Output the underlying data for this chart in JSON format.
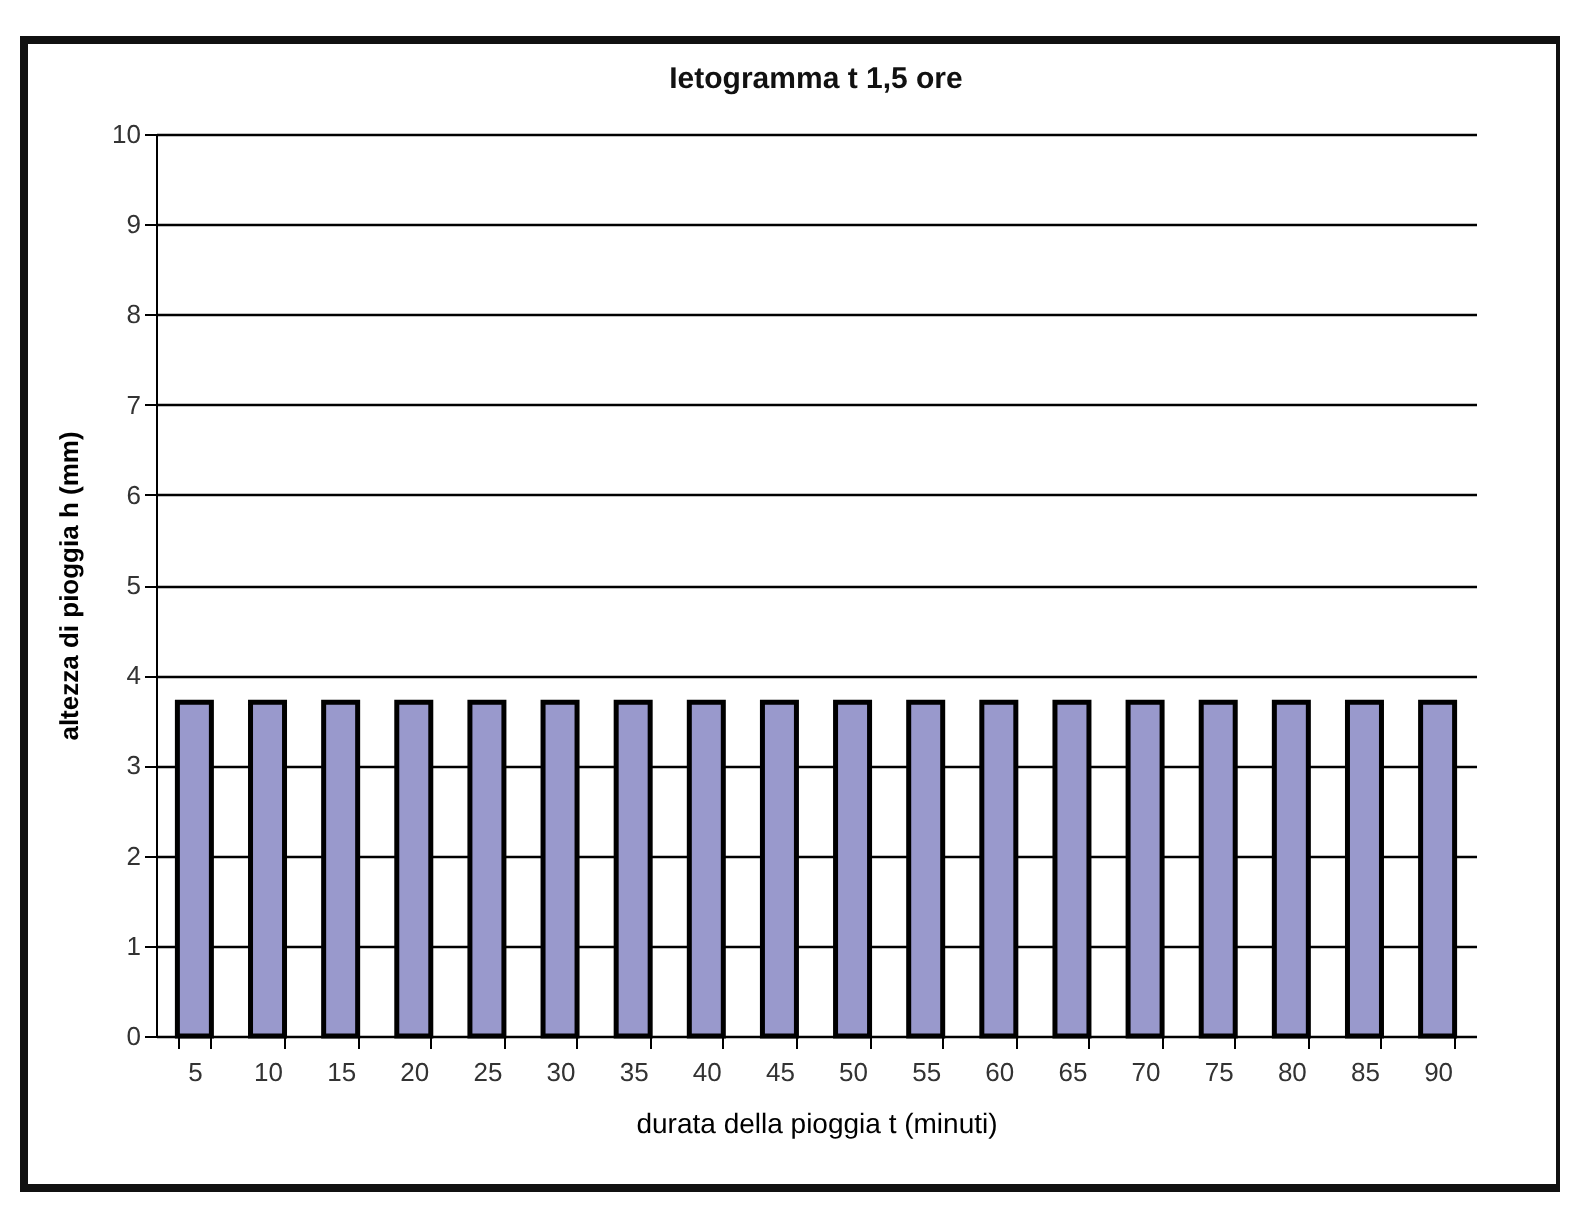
{
  "chart_data": {
    "type": "bar",
    "title": "Ietogramma t 1,5 ore",
    "xlabel": "durata della pioggia t (minuti)",
    "ylabel": "altezza di pioggia h (mm)",
    "categories": [
      "5",
      "10",
      "15",
      "20",
      "25",
      "30",
      "35",
      "40",
      "45",
      "50",
      "55",
      "60",
      "65",
      "70",
      "75",
      "80",
      "85",
      "90"
    ],
    "values": [
      3.7,
      3.7,
      3.7,
      3.7,
      3.7,
      3.7,
      3.7,
      3.7,
      3.7,
      3.7,
      3.7,
      3.7,
      3.7,
      3.7,
      3.7,
      3.7,
      3.7,
      3.7
    ],
    "color": "#9999cc",
    "ylim": [
      0,
      10
    ],
    "yticks": [
      0,
      1,
      2,
      3,
      4,
      5,
      6,
      7,
      8,
      9,
      10
    ],
    "grid": "y"
  }
}
